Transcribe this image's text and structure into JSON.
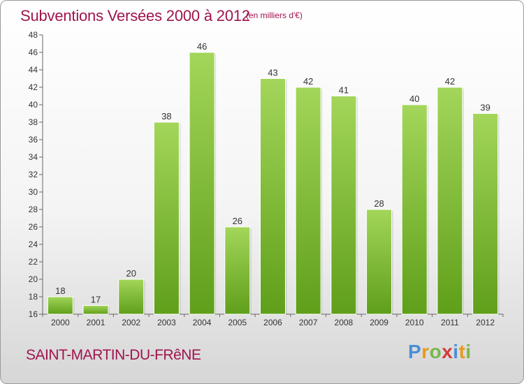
{
  "title": "Subventions Versées 2000 à 2012",
  "unit": "(en milliers d'€)",
  "commune": "SAINT-MARTIN-DU-FRêNE",
  "logo": {
    "letters": [
      "P",
      "r",
      "o",
      "x",
      "i",
      "t",
      "i"
    ],
    "colors": [
      "#4a8fd8",
      "#e89a1e",
      "#7ab648",
      "#d33b3b",
      "#4a8fd8",
      "#e89a1e",
      "#7ab648"
    ]
  },
  "colors": {
    "bar_top": "#a3d65a",
    "bar_bottom": "#5f9f1a",
    "title": "#a0144e"
  },
  "chart_data": {
    "type": "bar",
    "categories": [
      "2000",
      "2001",
      "2002",
      "2003",
      "2004",
      "2005",
      "2006",
      "2007",
      "2008",
      "2009",
      "2010",
      "2011",
      "2012"
    ],
    "values": [
      18,
      17,
      20,
      38,
      46,
      26,
      43,
      42,
      41,
      28,
      40,
      42,
      39
    ],
    "title": "Subventions Versées 2000 à 2012",
    "ylim": [
      16,
      48
    ],
    "yticks": [
      16,
      18,
      20,
      22,
      24,
      26,
      28,
      30,
      32,
      34,
      36,
      38,
      40,
      42,
      44,
      46,
      48
    ],
    "grid": false,
    "legend": "none"
  }
}
